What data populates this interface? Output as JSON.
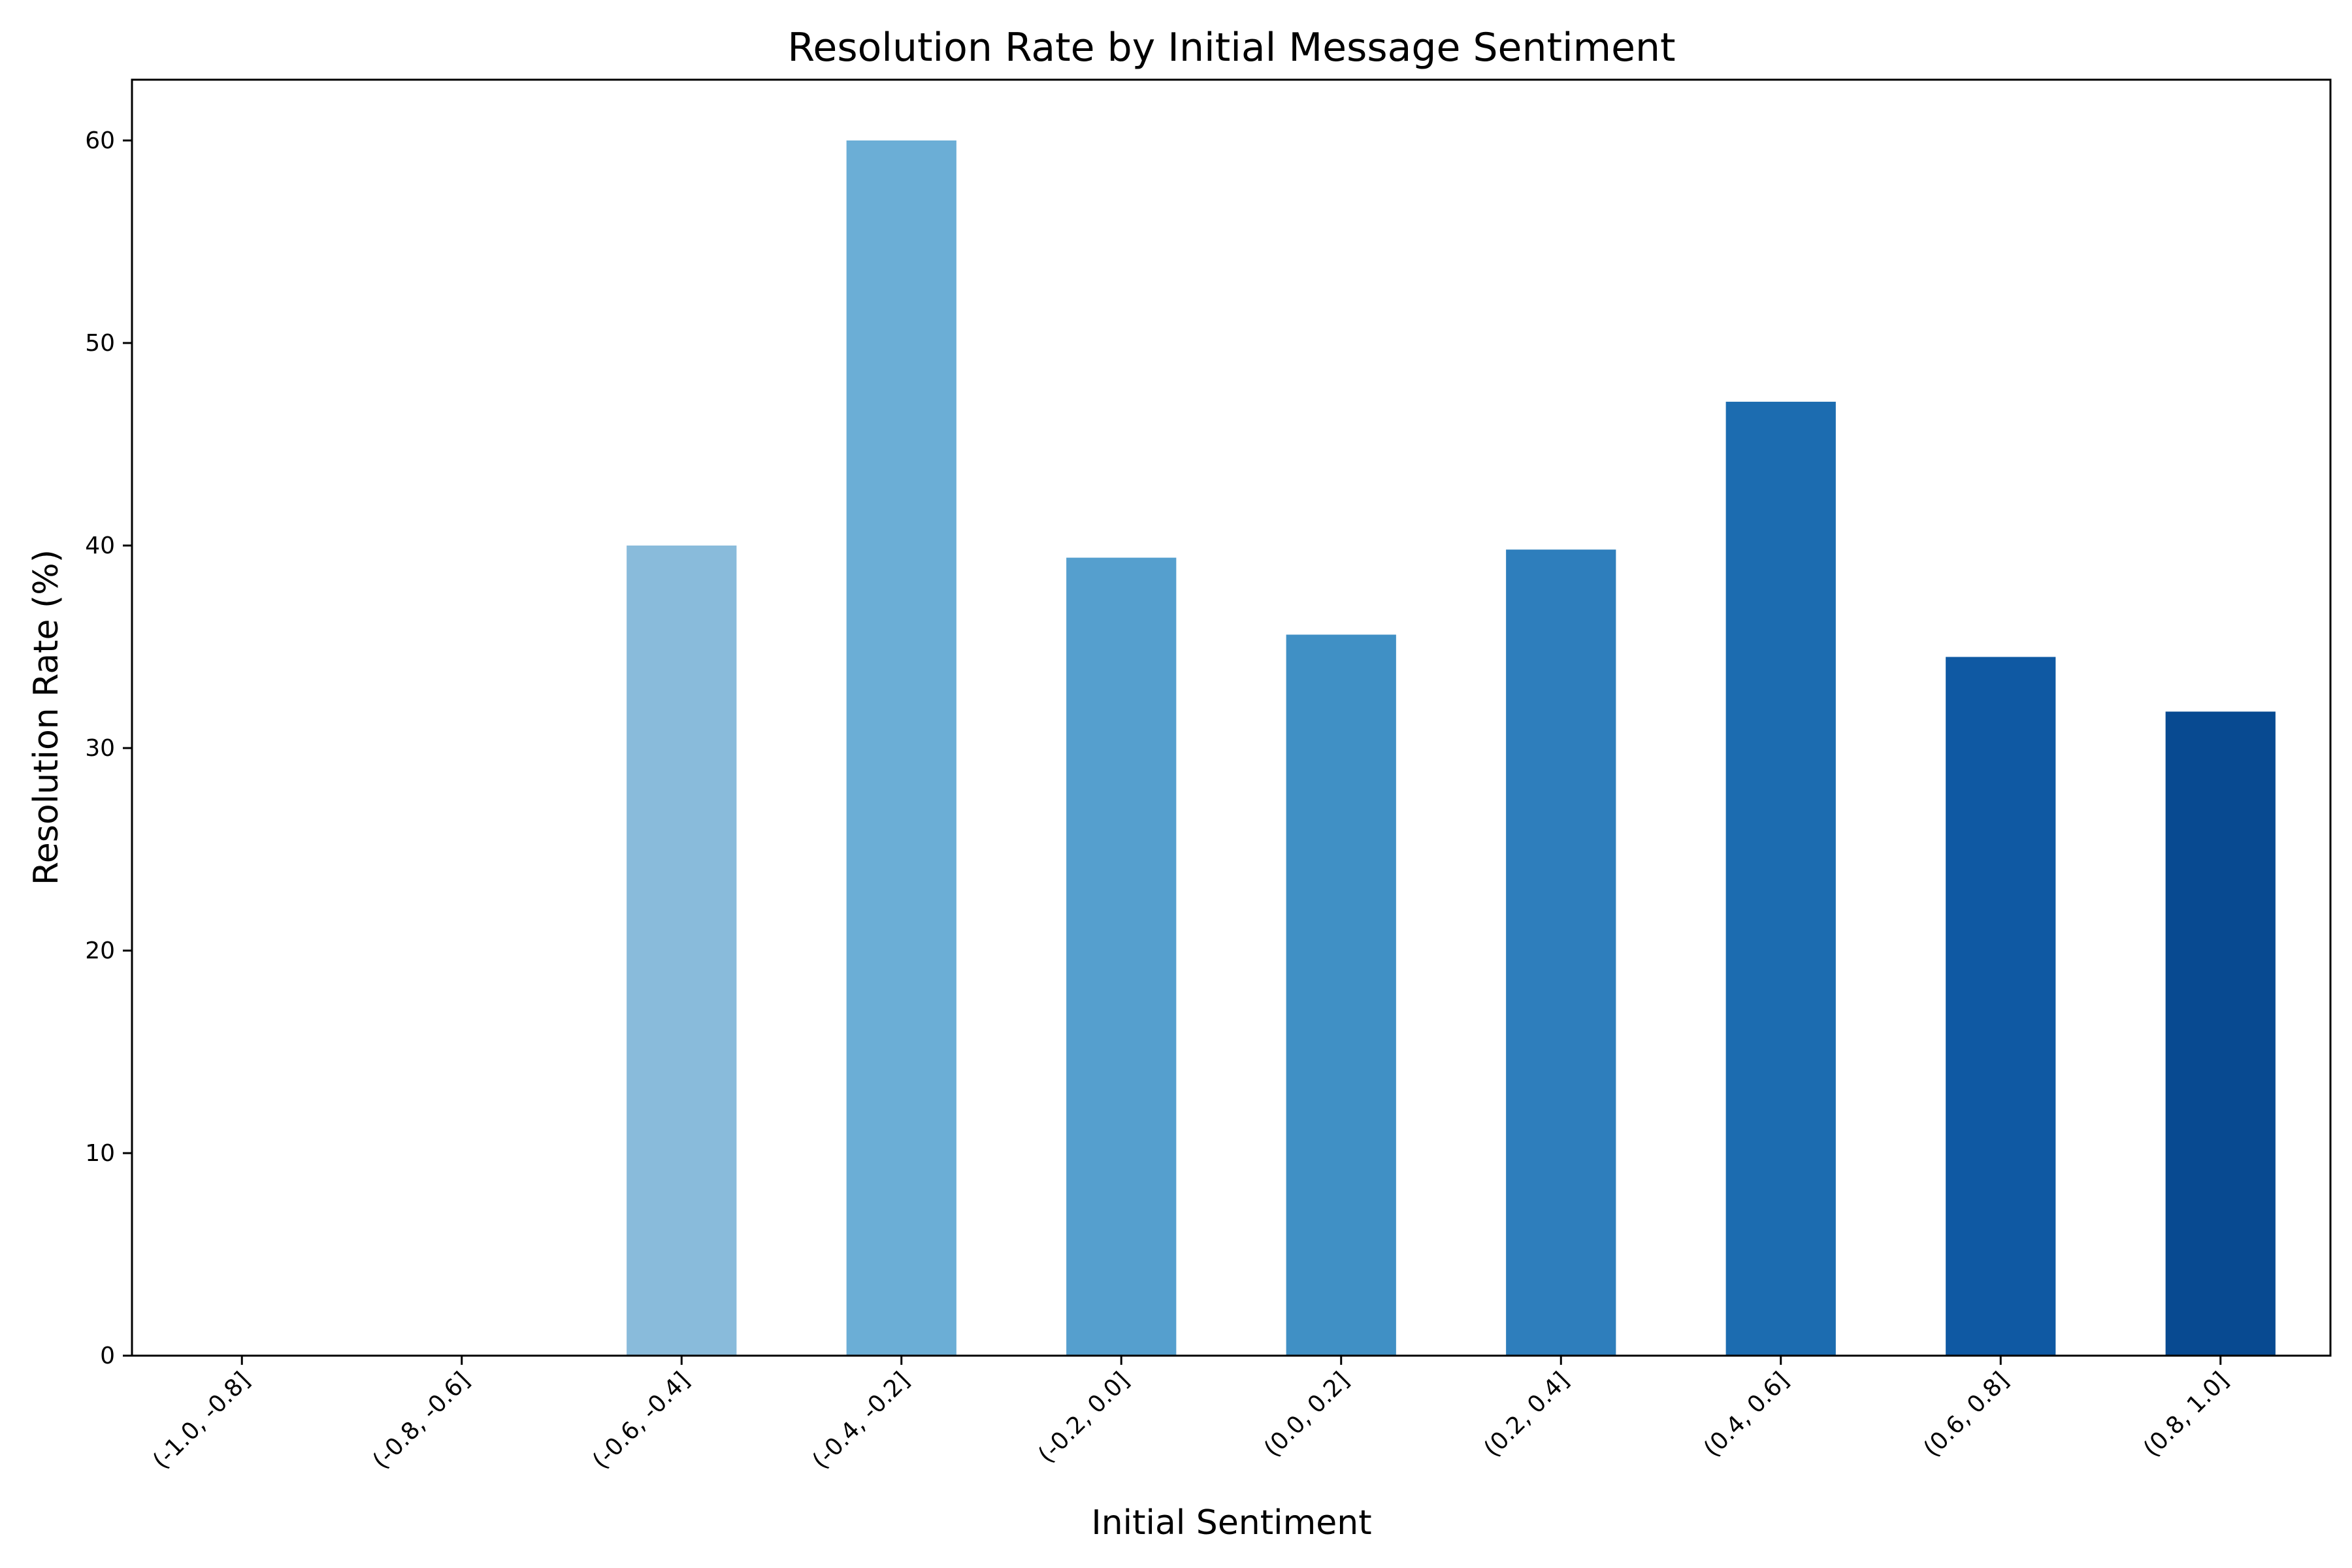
{
  "chart_data": {
    "type": "bar",
    "title": "Resolution Rate by Initial Message Sentiment",
    "xlabel": "Initial Sentiment",
    "ylabel": "Resolution Rate (%)",
    "categories": [
      "(-1.0, -0.8]",
      "(-0.8, -0.6]",
      "(-0.6, -0.4]",
      "(-0.4, -0.2]",
      "(-0.2, 0.0]",
      "(0.0, 0.2]",
      "(0.2, 0.4]",
      "(0.4, 0.6]",
      "(0.6, 0.8]",
      "(0.8, 1.0]"
    ],
    "values": [
      0,
      0,
      40.0,
      60.0,
      39.4,
      35.6,
      39.8,
      47.1,
      34.5,
      31.8
    ],
    "colors": [
      "#c6dbef",
      "#a6cee4",
      "#89bbdb",
      "#6baed6",
      "#559fce",
      "#4090c5",
      "#2e7ebc",
      "#1c6cb0",
      "#0f59a3",
      "#084a91"
    ],
    "ylim": [
      0,
      63
    ],
    "yticks": [
      0,
      10,
      20,
      30,
      40,
      50,
      60
    ],
    "grid": false,
    "legend": "none"
  }
}
